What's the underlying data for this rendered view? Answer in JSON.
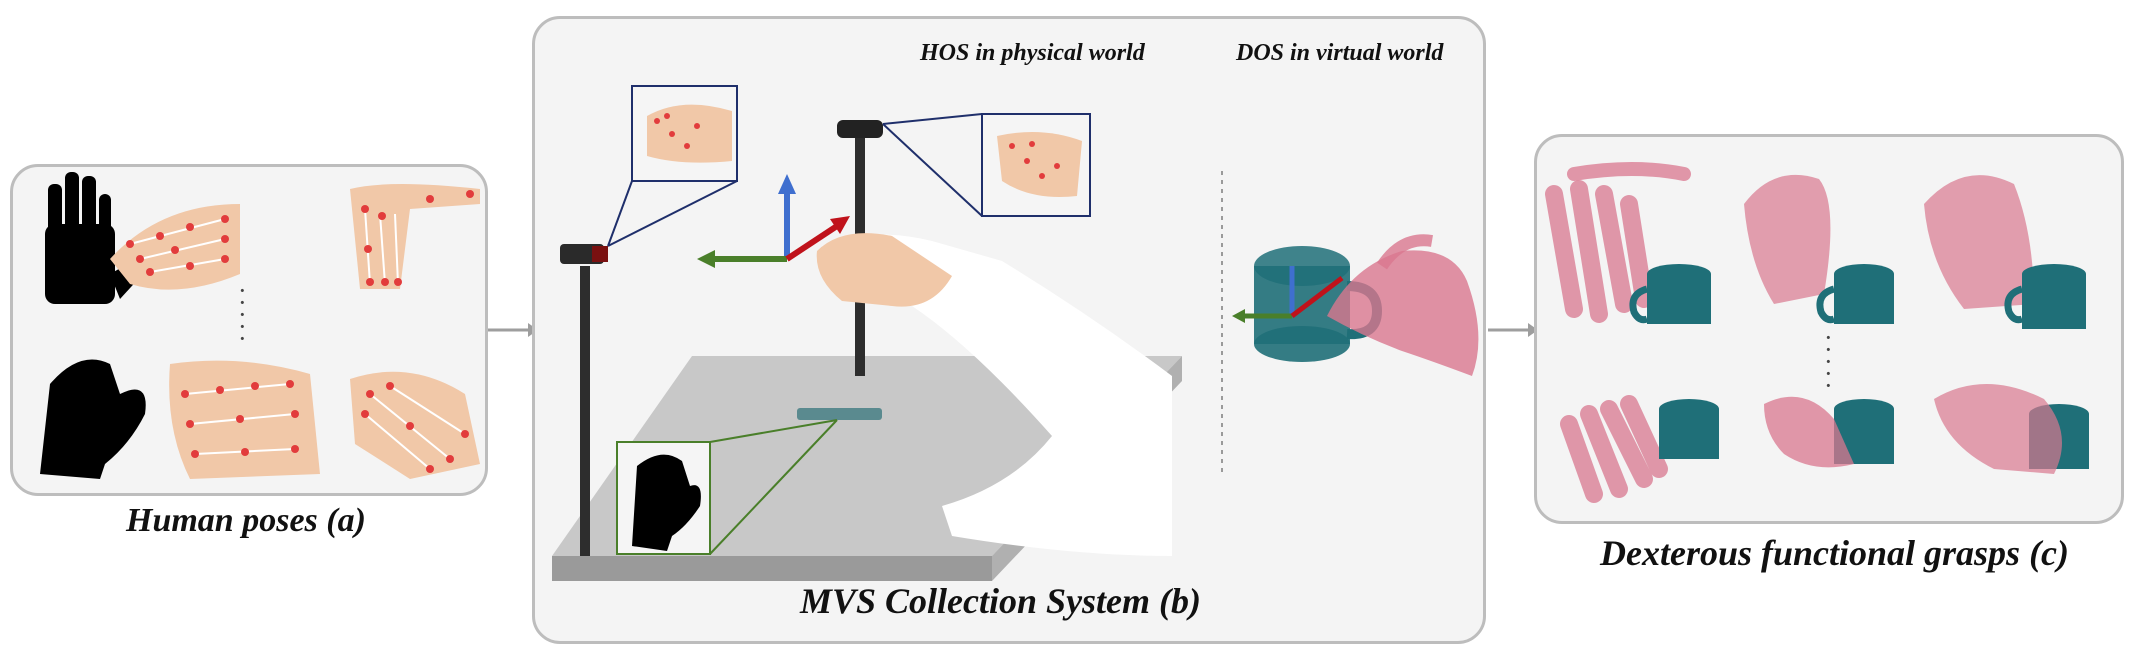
{
  "panels": {
    "human_poses": {
      "caption": "Human poses (a)"
    },
    "mvs_system": {
      "caption": "MVS Collection System (b)",
      "hos_label": "HOS in physical world",
      "dos_label": "DOS in virtual world"
    },
    "grasps": {
      "caption": "Dexterous functional grasps (c)"
    }
  },
  "colors": {
    "panel_border": "#bdbdbd",
    "panel_fill": "#f4f4f4",
    "point_cloud_hand": "#d9778f",
    "point_cloud_mug": "#1f6f78",
    "axis_x": "#c0121b",
    "axis_y": "#4a7f2a",
    "axis_z": "#3f6fcf",
    "keypoint": "#e23c3c",
    "skin": "#f1c8a8"
  }
}
